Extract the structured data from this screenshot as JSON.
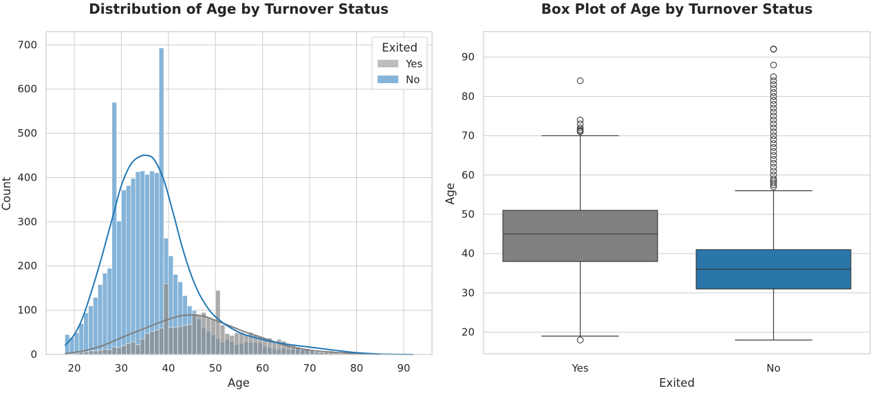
{
  "chart_data": [
    {
      "type": "histogram",
      "title": "Distribution of Age by Turnover Status",
      "xlabel": "Age",
      "ylabel": "Count",
      "xlim": [
        14,
        96
      ],
      "ylim": [
        0,
        730
      ],
      "xticks": [
        20,
        30,
        40,
        50,
        60,
        70,
        80,
        90
      ],
      "yticks": [
        0,
        100,
        200,
        300,
        400,
        500,
        600,
        700
      ],
      "grid": true,
      "legend": {
        "title": "Exited",
        "position": "top-right",
        "entries": [
          "Yes",
          "No"
        ]
      },
      "bin_width": 1,
      "series": [
        {
          "name": "No",
          "color": "#1f77b4",
          "bin_start": 18,
          "values": [
            45,
            38,
            49,
            70,
            94,
            110,
            129,
            158,
            184,
            195,
            570,
            302,
            372,
            382,
            398,
            413,
            415,
            407,
            415,
            411,
            693,
            263,
            223,
            181,
            164,
            133,
            110,
            99,
            80,
            60,
            52,
            44,
            36,
            28,
            34,
            28,
            22,
            24,
            28,
            27,
            27,
            26,
            18,
            15,
            12,
            11,
            14,
            11,
            12,
            14,
            11,
            11,
            9,
            6,
            5,
            3,
            3,
            2,
            2,
            1,
            1,
            1,
            1,
            0,
            1,
            0,
            0,
            0,
            0,
            0,
            0,
            0,
            0,
            0,
            1
          ],
          "kde": {
            "x": [
              18,
              20,
              22,
              25,
              28,
              30,
              32,
              34,
              35.5,
              37,
              39,
              41,
              43,
              45,
              47,
              50,
              55,
              60,
              63,
              66,
              69,
              72,
              75,
              80,
              85,
              92
            ],
            "y": [
              20,
              45,
              90,
              190,
              305,
              382,
              430,
              448,
              450,
              440,
              395,
              320,
              240,
              175,
              128,
              85,
              50,
              34,
              27,
              22,
              18,
              14,
              10,
              4,
              1,
              0
            ]
          }
        },
        {
          "name": "Yes",
          "color": "#7f7f7f",
          "bin_start": 18,
          "values": [
            0,
            1,
            3,
            5,
            6,
            8,
            8,
            9,
            12,
            11,
            17,
            16,
            20,
            25,
            28,
            22,
            35,
            48,
            52,
            55,
            60,
            160,
            61,
            62,
            63,
            66,
            68,
            93,
            90,
            95,
            85,
            80,
            145,
            67,
            47,
            43,
            49,
            50,
            44,
            50,
            43,
            40,
            36,
            37,
            30,
            34,
            30,
            23,
            20,
            17,
            11,
            13,
            8,
            6,
            5,
            5,
            8,
            5,
            2,
            3,
            2,
            1,
            1,
            1,
            0,
            0,
            0
          ],
          "kde": {
            "x": [
              18,
              22,
              26,
              30,
              34,
              38,
              42,
              44,
              46,
              48,
              50,
              53,
              56,
              60,
              65,
              70,
              75,
              80,
              85
            ],
            "y": [
              2,
              8,
              20,
              38,
              55,
              72,
              86,
              89,
              89,
              85,
              77,
              65,
              52,
              38,
              20,
              10,
              5,
              2,
              0
            ]
          }
        }
      ]
    },
    {
      "type": "box",
      "title": "Box Plot of Age by Turnover Status",
      "xlabel": "Exited",
      "ylabel": "Age",
      "categories": [
        "Yes",
        "No"
      ],
      "ylim": [
        14.5,
        96.5
      ],
      "yticks": [
        20,
        30,
        40,
        50,
        60,
        70,
        80,
        90
      ],
      "grid": true,
      "series": [
        {
          "name": "Yes",
          "color": "#808080",
          "q1": 38,
          "median": 45,
          "q3": 51,
          "whisker_low": 19,
          "whisker_high": 70,
          "outliers": [
            18,
            71,
            71.2,
            71.5,
            72,
            73,
            74,
            84
          ]
        },
        {
          "name": "No",
          "color": "#2a76aa",
          "q1": 31,
          "median": 36,
          "q3": 41,
          "whisker_low": 18,
          "whisker_high": 56,
          "outliers": [
            57,
            57.5,
            58,
            58.5,
            59,
            60,
            61,
            62,
            63,
            64,
            65,
            66,
            67,
            68,
            69,
            70,
            71,
            72,
            73,
            74,
            75,
            76,
            77,
            78,
            79,
            80,
            81,
            82,
            83,
            84,
            85,
            88,
            92,
            92.1
          ]
        }
      ]
    }
  ]
}
